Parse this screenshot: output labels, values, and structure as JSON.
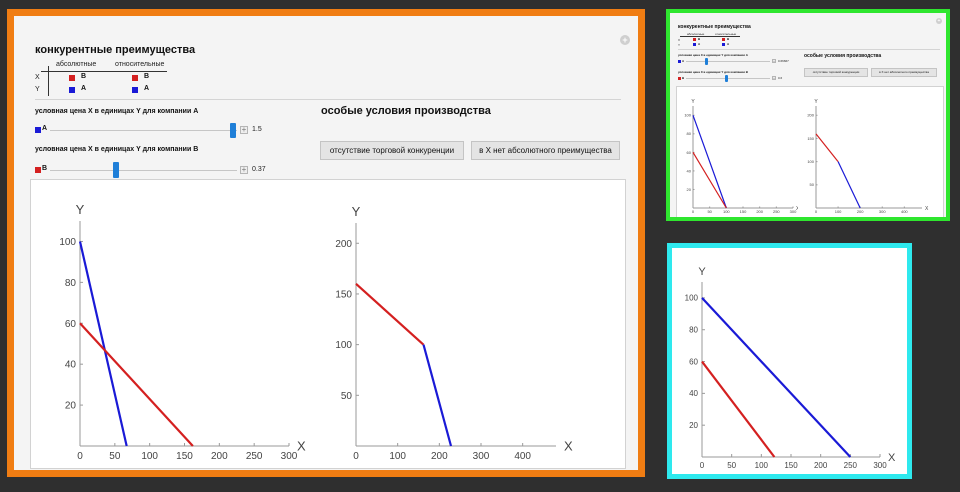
{
  "panel": {
    "title": "конкурентные преимущества",
    "col_absolute": "абсолютные",
    "col_relative": "относительные",
    "row_x": "X",
    "row_y": "Y",
    "x_abs": "B",
    "x_rel": "B",
    "y_abs": "A",
    "y_rel": "A",
    "slider_a_label": "условная цена X в единицах Y для компании A",
    "slider_a_tag": "A",
    "slider_a_value": "1.5",
    "slider_b_label": "условная цена X в единицах Y для компании B",
    "slider_b_tag": "B",
    "slider_b_value": "0.37",
    "special_title": "особые условия производства",
    "btn_no_competition": "отсутствие торговой конкуренции",
    "btn_no_absolute": "в X нет абсолютного преимущества"
  },
  "green_panel": {
    "slider_a_value": "0.66667",
    "slider_b_value": "0.6"
  },
  "colors": {
    "red": "#d42020",
    "blue": "#1a1ad6",
    "accent_orange": "#f07d13",
    "accent_green": "#2fe62f",
    "accent_cyan": "#2ee9ee",
    "slider": "#1f7fd8"
  },
  "chart_data": [
    {
      "id": "main-left",
      "type": "line",
      "xlabel": "X",
      "ylabel": "Y",
      "xlim": [
        0,
        300
      ],
      "ylim": [
        0,
        110
      ],
      "xticks": [
        0,
        50,
        100,
        150,
        200,
        250,
        300
      ],
      "yticks": [
        20,
        40,
        60,
        80,
        100
      ],
      "series": [
        {
          "color": "blue",
          "points": [
            [
              0,
              100
            ],
            [
              67,
              0
            ]
          ]
        },
        {
          "color": "red",
          "points": [
            [
              0,
              60
            ],
            [
              162,
              0
            ]
          ]
        }
      ]
    },
    {
      "id": "main-right",
      "type": "line",
      "xlabel": "X",
      "ylabel": "Y",
      "xlim": [
        0,
        480
      ],
      "ylim": [
        0,
        220
      ],
      "xticks": [
        0,
        100,
        200,
        300,
        400
      ],
      "yticks": [
        50,
        100,
        150,
        200
      ],
      "series": [
        {
          "color": "red",
          "points": [
            [
              0,
              160
            ],
            [
              162,
              100
            ]
          ]
        },
        {
          "color": "blue",
          "points": [
            [
              162,
              100
            ],
            [
              228,
              0
            ]
          ]
        }
      ]
    },
    {
      "id": "green-left",
      "type": "line",
      "xlabel": "X",
      "ylabel": "Y",
      "xlim": [
        0,
        300
      ],
      "ylim": [
        0,
        110
      ],
      "xticks": [
        0,
        50,
        100,
        150,
        200,
        250,
        300
      ],
      "yticks": [
        20,
        40,
        60,
        80,
        100
      ],
      "series": [
        {
          "color": "blue",
          "points": [
            [
              0,
              100
            ],
            [
              100,
              0
            ]
          ]
        },
        {
          "color": "red",
          "points": [
            [
              0,
              60
            ],
            [
              100,
              0
            ]
          ]
        }
      ]
    },
    {
      "id": "green-right",
      "type": "line",
      "xlabel": "X",
      "ylabel": "Y",
      "xlim": [
        0,
        480
      ],
      "ylim": [
        0,
        220
      ],
      "xticks": [
        0,
        100,
        200,
        300,
        400
      ],
      "yticks": [
        50,
        100,
        150,
        200
      ],
      "series": [
        {
          "color": "red",
          "points": [
            [
              0,
              160
            ],
            [
              100,
              100
            ]
          ]
        },
        {
          "color": "blue",
          "points": [
            [
              100,
              100
            ],
            [
              200,
              0
            ]
          ]
        }
      ]
    },
    {
      "id": "cyan",
      "type": "line",
      "xlabel": "X",
      "ylabel": "Y",
      "xlim": [
        0,
        300
      ],
      "ylim": [
        0,
        110
      ],
      "xticks": [
        0,
        50,
        100,
        150,
        200,
        250,
        300
      ],
      "yticks": [
        20,
        40,
        60,
        80,
        100
      ],
      "series": [
        {
          "color": "blue",
          "points": [
            [
              0,
              100
            ],
            [
              250,
              0
            ]
          ]
        },
        {
          "color": "red",
          "points": [
            [
              0,
              60
            ],
            [
              122,
              0
            ]
          ]
        }
      ]
    }
  ]
}
